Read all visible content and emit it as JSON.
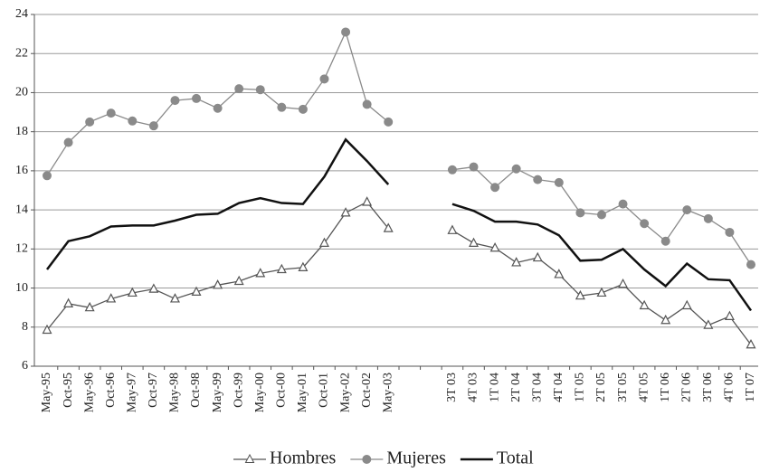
{
  "chart_data": {
    "type": "line",
    "categories": [
      "May-95",
      "Oct-95",
      "May-96",
      "Oct-96",
      "May-97",
      "Oct-97",
      "May-98",
      "Oct-98",
      "May-99",
      "Oct-99",
      "May-00",
      "Oct-00",
      "May-01",
      "Oct-01",
      "May-02",
      "Oct-02",
      "May-03",
      null,
      null,
      "3T 03",
      "4T 03",
      "1T 04",
      "2T 04",
      "3T 04",
      "4T 04",
      "1T 05",
      "2T 05",
      "3T 05",
      "4T 05",
      "1T 06",
      "2T 06",
      "3T 06",
      "4T 06",
      "1T 07"
    ],
    "series": [
      {
        "name": "Hombres",
        "color": "#555555",
        "marker": "triangle",
        "values": [
          7.85,
          9.2,
          9.0,
          9.45,
          9.75,
          9.95,
          9.45,
          9.8,
          10.15,
          10.35,
          10.75,
          10.95,
          11.05,
          12.3,
          13.85,
          14.4,
          13.05,
          null,
          null,
          12.95,
          12.3,
          12.05,
          11.3,
          11.55,
          10.7,
          9.6,
          9.75,
          10.2,
          9.1,
          8.35,
          9.1,
          8.1,
          8.55,
          7.1
        ]
      },
      {
        "name": "Mujeres",
        "color": "#8a8a8a",
        "marker": "circle",
        "values": [
          15.75,
          17.45,
          18.5,
          18.95,
          18.55,
          18.3,
          19.6,
          19.7,
          19.2,
          20.2,
          20.15,
          19.25,
          19.15,
          20.7,
          23.1,
          19.4,
          18.5,
          null,
          null,
          16.05,
          16.2,
          15.15,
          16.1,
          15.55,
          15.4,
          13.85,
          13.75,
          14.3,
          13.3,
          12.4,
          14.0,
          13.55,
          12.85,
          11.2
        ]
      },
      {
        "name": "Total",
        "color": "#111111",
        "marker": "none",
        "values": [
          10.95,
          12.4,
          12.65,
          13.15,
          13.2,
          13.2,
          13.45,
          13.75,
          13.8,
          14.35,
          14.6,
          14.35,
          14.3,
          15.7,
          17.6,
          16.5,
          15.3,
          null,
          null,
          14.3,
          13.95,
          13.4,
          13.4,
          13.25,
          12.7,
          11.4,
          11.45,
          12.0,
          10.95,
          10.1,
          11.25,
          10.45,
          10.4,
          8.85
        ]
      }
    ],
    "ylim": [
      6,
      24
    ],
    "yticks": [
      6,
      8,
      10,
      12,
      14,
      16,
      18,
      20,
      22,
      24
    ],
    "grid": true,
    "legend": "bottom"
  }
}
